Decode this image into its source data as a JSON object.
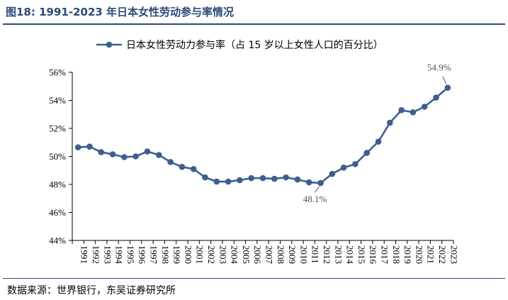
{
  "figure": {
    "number": "图18:",
    "title": "1991-2023 年日本女性劳动参与率情况",
    "source": "数据来源：世界银行，东吴证券研究所"
  },
  "colors": {
    "accent": "#2c4a7a",
    "series": "#3d5f8f",
    "axis": "#000000",
    "annotation": "#555555"
  },
  "chart_data": {
    "type": "line",
    "title": "",
    "xlabel": "",
    "ylabel": "",
    "ylim": [
      44,
      56
    ],
    "yticks": [
      44,
      46,
      48,
      50,
      52,
      54,
      56
    ],
    "ytick_labels": [
      "44%",
      "46%",
      "48%",
      "50%",
      "52%",
      "54%",
      "56%"
    ],
    "grid": false,
    "legend_position": "top-center",
    "categories": [
      "1991",
      "1992",
      "1993",
      "1994",
      "1995",
      "1996",
      "1997",
      "1998",
      "1999",
      "2000",
      "2001",
      "2002",
      "2003",
      "2004",
      "2005",
      "2006",
      "2007",
      "2008",
      "2009",
      "2010",
      "2011",
      "2012",
      "2013",
      "2014",
      "2015",
      "2016",
      "2017",
      "2018",
      "2019",
      "2020",
      "2021",
      "2022",
      "2023"
    ],
    "series": [
      {
        "name": "日本女性劳动力参与率（占 15 岁以上女性人口的百分比）",
        "values": [
          50.65,
          50.7,
          50.3,
          50.15,
          49.95,
          50.0,
          50.35,
          50.1,
          49.6,
          49.25,
          49.1,
          48.5,
          48.2,
          48.2,
          48.3,
          48.45,
          48.45,
          48.4,
          48.5,
          48.35,
          48.15,
          48.1,
          48.75,
          49.2,
          49.45,
          50.25,
          51.05,
          52.4,
          53.3,
          53.15,
          53.55,
          54.2,
          54.9
        ]
      }
    ],
    "annotations": [
      {
        "category": "2012",
        "text": "48.1%",
        "position": "below"
      },
      {
        "category": "2023",
        "text": "54.9%",
        "position": "above"
      }
    ]
  }
}
